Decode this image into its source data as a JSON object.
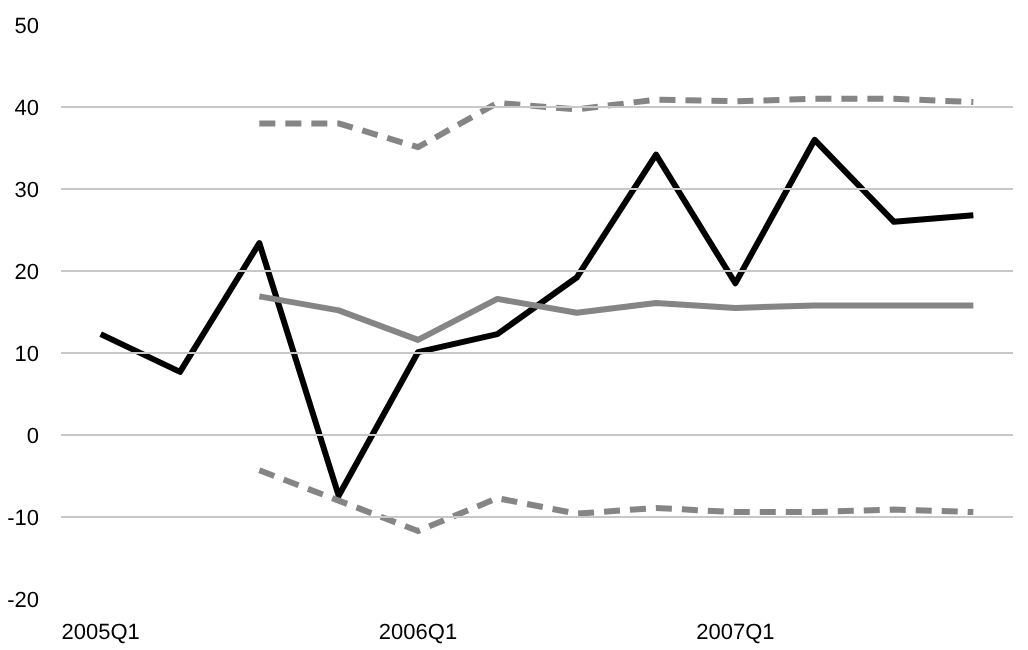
{
  "chart_data": {
    "type": "line",
    "categories": [
      "2005Q1",
      null,
      null,
      null,
      "2006Q1",
      null,
      null,
      null,
      "2007Q1",
      null,
      null,
      null
    ],
    "series": [
      {
        "color": "#000000",
        "values": [
          12.3,
          7.7,
          23.4,
          -7.4,
          10.1,
          12.3,
          19.2,
          34.2,
          18.5,
          36.0,
          26.0,
          26.8
        ]
      },
      {
        "color": "#858585",
        "values": [
          null,
          null,
          16.9,
          15.2,
          11.6,
          16.6,
          14.9,
          16.1,
          15.5,
          15.8,
          15.8,
          15.8
        ]
      },
      {
        "color": "#858585",
        "line_style": "dashed",
        "values": [
          null,
          null,
          38.0,
          38.0,
          35.1,
          40.5,
          39.7,
          40.9,
          40.7,
          41.0,
          41.0,
          40.6
        ]
      },
      {
        "color": "#858585",
        "line_style": "dashed",
        "values": [
          null,
          null,
          -4.3,
          -8.0,
          -11.7,
          -7.7,
          -9.6,
          -8.9,
          -9.4,
          -9.4,
          -9.1,
          -9.4
        ]
      }
    ],
    "ylim": [
      -20,
      50
    ],
    "yticks": [
      -20,
      -10,
      0,
      10,
      20,
      30,
      40,
      50
    ],
    "grid": "y",
    "marker": "none",
    "line_style": "solid"
  }
}
